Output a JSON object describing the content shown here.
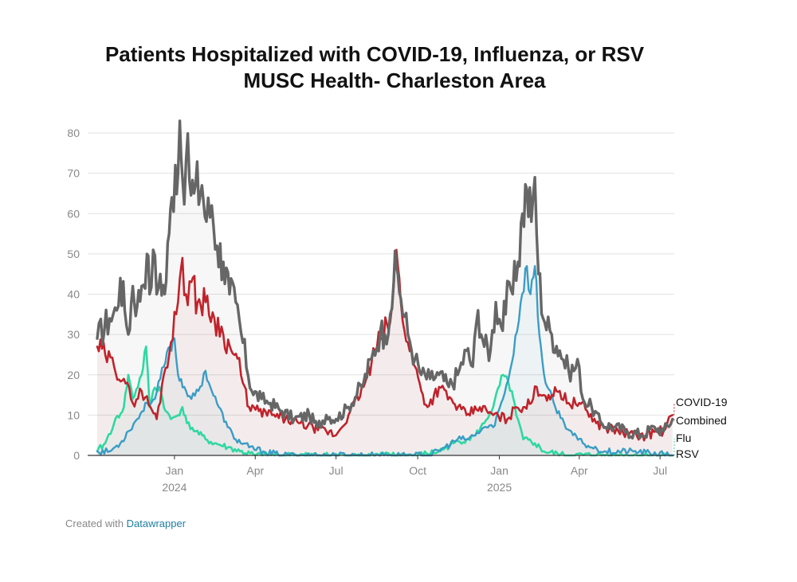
{
  "header": {
    "title": "Patients Hospitalized with COVID-19, Influenza, or RSV",
    "subtitle": "MUSC Health- Charleston Area"
  },
  "footer": {
    "prefix": "Created with",
    "link": "Datawrapper"
  },
  "colors": {
    "combined": "#666666",
    "covid": "#c0232b",
    "flu": "#2ed8a2",
    "rsv": "#3a9dc5",
    "grid": "#e2e2e2",
    "axis_text": "#888888"
  },
  "chart_data": {
    "type": "line",
    "title": "Patients Hospitalized with COVID-19, Influenza, or RSV",
    "subtitle": "MUSC Health- Charleston Area",
    "xlabel": "",
    "ylabel": "",
    "ylim": [
      0,
      82
    ],
    "yticks": [
      0,
      10,
      20,
      30,
      40,
      50,
      60,
      70,
      80
    ],
    "xlim": [
      "2023-10-06",
      "2025-07-17"
    ],
    "xticks": [
      {
        "date": "2024-01-01",
        "label": "Jan",
        "year": "2024"
      },
      {
        "date": "2024-04-01",
        "label": "Apr",
        "year": ""
      },
      {
        "date": "2024-07-01",
        "label": "Jul",
        "year": ""
      },
      {
        "date": "2024-10-01",
        "label": "Oct",
        "year": ""
      },
      {
        "date": "2025-01-01",
        "label": "Jan",
        "year": "2025"
      },
      {
        "date": "2025-04-01",
        "label": "Apr",
        "year": ""
      },
      {
        "date": "2025-07-01",
        "label": "Jul",
        "year": ""
      }
    ],
    "grid": true,
    "legend": "direct labels at right end",
    "series": [
      {
        "name": "Combined",
        "color": "#666666",
        "points": [
          [
            "2023-10-06",
            29
          ],
          [
            "2023-10-20",
            34
          ],
          [
            "2023-10-28",
            36
          ],
          [
            "2023-11-01",
            44
          ],
          [
            "2023-11-06",
            36
          ],
          [
            "2023-11-10",
            30
          ],
          [
            "2023-11-15",
            42
          ],
          [
            "2023-11-20",
            37
          ],
          [
            "2023-11-25",
            42
          ],
          [
            "2023-12-01",
            50
          ],
          [
            "2023-12-04",
            40
          ],
          [
            "2023-12-08",
            51
          ],
          [
            "2023-12-12",
            40
          ],
          [
            "2023-12-16",
            45
          ],
          [
            "2023-12-21",
            40
          ],
          [
            "2023-12-26",
            55
          ],
          [
            "2023-12-29",
            64
          ],
          [
            "2024-01-02",
            72
          ],
          [
            "2024-01-05",
            70
          ],
          [
            "2024-01-07",
            83
          ],
          [
            "2024-01-10",
            69
          ],
          [
            "2024-01-14",
            73
          ],
          [
            "2024-01-18",
            68
          ],
          [
            "2024-01-23",
            65
          ],
          [
            "2024-02-01",
            67
          ],
          [
            "2024-02-06",
            58
          ],
          [
            "2024-02-12",
            62
          ],
          [
            "2024-02-18",
            52
          ],
          [
            "2024-02-25",
            48
          ],
          [
            "2024-03-03",
            40
          ],
          [
            "2024-03-10",
            38
          ],
          [
            "2024-03-18",
            28
          ],
          [
            "2024-03-28",
            16
          ],
          [
            "2024-04-08",
            14
          ],
          [
            "2024-04-18",
            13
          ],
          [
            "2024-05-01",
            11
          ],
          [
            "2024-05-15",
            9
          ],
          [
            "2024-06-01",
            10
          ],
          [
            "2024-06-10",
            7
          ],
          [
            "2024-06-20",
            10
          ],
          [
            "2024-07-01",
            9
          ],
          [
            "2024-07-15",
            12
          ],
          [
            "2024-08-01",
            18
          ],
          [
            "2024-08-10",
            24
          ],
          [
            "2024-08-20",
            31
          ],
          [
            "2024-08-25",
            30
          ],
          [
            "2024-08-31",
            35
          ],
          [
            "2024-09-04",
            43
          ],
          [
            "2024-09-07",
            47
          ],
          [
            "2024-09-12",
            39
          ],
          [
            "2024-09-20",
            30
          ],
          [
            "2024-09-28",
            24
          ],
          [
            "2024-10-05",
            20
          ],
          [
            "2024-10-15",
            19
          ],
          [
            "2024-10-25",
            20
          ],
          [
            "2024-11-05",
            17
          ],
          [
            "2024-11-15",
            20
          ],
          [
            "2024-11-25",
            26
          ],
          [
            "2024-12-02",
            22
          ],
          [
            "2024-12-08",
            36
          ],
          [
            "2024-12-15",
            27
          ],
          [
            "2024-12-22",
            26
          ],
          [
            "2024-12-28",
            38
          ],
          [
            "2025-01-03",
            32
          ],
          [
            "2025-01-08",
            35
          ],
          [
            "2025-01-12",
            43
          ],
          [
            "2025-01-16",
            40
          ],
          [
            "2025-01-22",
            48
          ],
          [
            "2025-01-27",
            60
          ],
          [
            "2025-02-01",
            66
          ],
          [
            "2025-02-06",
            58
          ],
          [
            "2025-02-10",
            69
          ],
          [
            "2025-02-14",
            45
          ],
          [
            "2025-02-21",
            33
          ],
          [
            "2025-03-01",
            30
          ],
          [
            "2025-03-10",
            26
          ],
          [
            "2025-03-20",
            21
          ],
          [
            "2025-04-01",
            22
          ],
          [
            "2025-04-05",
            14
          ],
          [
            "2025-04-15",
            12
          ],
          [
            "2025-04-25",
            8
          ],
          [
            "2025-05-10",
            7
          ],
          [
            "2025-05-25",
            6
          ],
          [
            "2025-06-10",
            5
          ],
          [
            "2025-06-25",
            7
          ],
          [
            "2025-07-05",
            6
          ],
          [
            "2025-07-15",
            9
          ]
        ]
      },
      {
        "name": "COVID-19",
        "color": "#c0232b",
        "points": [
          [
            "2023-10-06",
            27
          ],
          [
            "2023-10-15",
            25
          ],
          [
            "2023-10-25",
            22
          ],
          [
            "2023-11-05",
            19
          ],
          [
            "2023-11-15",
            13
          ],
          [
            "2023-11-25",
            16
          ],
          [
            "2023-12-05",
            12
          ],
          [
            "2023-12-12",
            9
          ],
          [
            "2023-12-20",
            20
          ],
          [
            "2023-12-28",
            28
          ],
          [
            "2024-01-03",
            35
          ],
          [
            "2024-01-07",
            44
          ],
          [
            "2024-01-10",
            49
          ],
          [
            "2024-01-14",
            40
          ],
          [
            "2024-01-20",
            43
          ],
          [
            "2024-01-27",
            38
          ],
          [
            "2024-02-05",
            38
          ],
          [
            "2024-02-15",
            34
          ],
          [
            "2024-02-25",
            30
          ],
          [
            "2024-03-05",
            26
          ],
          [
            "2024-03-12",
            24
          ],
          [
            "2024-03-18",
            18
          ],
          [
            "2024-03-25",
            12
          ],
          [
            "2024-04-05",
            11
          ],
          [
            "2024-04-20",
            10
          ],
          [
            "2024-05-05",
            9
          ],
          [
            "2024-05-20",
            8
          ],
          [
            "2024-06-05",
            7
          ],
          [
            "2024-06-20",
            6
          ],
          [
            "2024-07-01",
            5
          ],
          [
            "2024-07-15",
            10
          ],
          [
            "2024-08-01",
            17
          ],
          [
            "2024-08-10",
            23
          ],
          [
            "2024-08-20",
            29
          ],
          [
            "2024-08-31",
            33
          ],
          [
            "2024-09-04",
            42
          ],
          [
            "2024-09-07",
            51
          ],
          [
            "2024-09-12",
            38
          ],
          [
            "2024-09-20",
            28
          ],
          [
            "2024-09-28",
            22
          ],
          [
            "2024-10-05",
            16
          ],
          [
            "2024-10-12",
            12
          ],
          [
            "2024-10-25",
            17
          ],
          [
            "2024-11-10",
            13
          ],
          [
            "2024-11-25",
            10
          ],
          [
            "2024-12-10",
            12
          ],
          [
            "2024-12-25",
            10
          ],
          [
            "2025-01-10",
            9
          ],
          [
            "2025-01-20",
            12
          ],
          [
            "2025-01-28",
            12
          ],
          [
            "2025-02-06",
            13
          ],
          [
            "2025-02-12",
            17
          ],
          [
            "2025-02-20",
            15
          ],
          [
            "2025-03-01",
            15
          ],
          [
            "2025-03-10",
            16
          ],
          [
            "2025-03-20",
            13
          ],
          [
            "2025-04-01",
            13
          ],
          [
            "2025-04-10",
            11
          ],
          [
            "2025-04-20",
            8
          ],
          [
            "2025-05-01",
            7
          ],
          [
            "2025-05-15",
            6
          ],
          [
            "2025-06-01",
            5
          ],
          [
            "2025-06-15",
            5
          ],
          [
            "2025-06-28",
            6
          ],
          [
            "2025-07-05",
            6
          ],
          [
            "2025-07-15",
            10
          ]
        ]
      },
      {
        "name": "Flu",
        "color": "#2ed8a2",
        "points": [
          [
            "2023-10-06",
            1
          ],
          [
            "2023-10-15",
            3
          ],
          [
            "2023-10-25",
            8
          ],
          [
            "2023-11-05",
            12
          ],
          [
            "2023-11-10",
            20
          ],
          [
            "2023-11-15",
            14
          ],
          [
            "2023-11-25",
            20
          ],
          [
            "2023-11-30",
            27
          ],
          [
            "2023-12-04",
            12
          ],
          [
            "2023-12-08",
            16
          ],
          [
            "2023-12-15",
            17
          ],
          [
            "2023-12-22",
            11
          ],
          [
            "2023-12-28",
            9
          ],
          [
            "2024-01-05",
            10
          ],
          [
            "2024-01-10",
            12
          ],
          [
            "2024-01-15",
            8
          ],
          [
            "2024-01-25",
            6
          ],
          [
            "2024-02-05",
            4
          ],
          [
            "2024-02-15",
            3
          ],
          [
            "2024-03-01",
            2
          ],
          [
            "2024-03-15",
            1
          ],
          [
            "2024-04-01",
            0
          ],
          [
            "2024-06-01",
            0
          ],
          [
            "2024-08-01",
            0
          ],
          [
            "2024-10-01",
            0
          ],
          [
            "2024-10-25",
            1
          ],
          [
            "2024-11-10",
            3
          ],
          [
            "2024-11-25",
            4
          ],
          [
            "2024-12-05",
            5
          ],
          [
            "2024-12-15",
            8
          ],
          [
            "2024-12-25",
            12
          ],
          [
            "2025-01-05",
            20
          ],
          [
            "2025-01-15",
            16
          ],
          [
            "2025-01-20",
            10
          ],
          [
            "2025-01-28",
            4
          ],
          [
            "2025-02-10",
            3
          ],
          [
            "2025-02-20",
            1
          ],
          [
            "2025-03-15",
            0
          ],
          [
            "2025-07-15",
            0
          ]
        ]
      },
      {
        "name": "RSV",
        "color": "#3a9dc5",
        "points": [
          [
            "2023-10-06",
            1
          ],
          [
            "2023-10-20",
            1
          ],
          [
            "2023-11-01",
            3
          ],
          [
            "2023-11-10",
            6
          ],
          [
            "2023-11-20",
            9
          ],
          [
            "2023-12-01",
            13
          ],
          [
            "2023-12-10",
            14
          ],
          [
            "2023-12-20",
            22
          ],
          [
            "2023-12-27",
            27
          ],
          [
            "2024-01-01",
            29
          ],
          [
            "2024-01-05",
            20
          ],
          [
            "2024-01-12",
            17
          ],
          [
            "2024-01-20",
            14
          ],
          [
            "2024-01-28",
            16
          ],
          [
            "2024-02-05",
            21
          ],
          [
            "2024-02-12",
            16
          ],
          [
            "2024-02-20",
            12
          ],
          [
            "2024-03-01",
            7
          ],
          [
            "2024-03-10",
            4
          ],
          [
            "2024-03-25",
            2
          ],
          [
            "2024-04-10",
            1
          ],
          [
            "2024-05-01",
            0
          ],
          [
            "2024-10-15",
            0
          ],
          [
            "2024-11-01",
            2
          ],
          [
            "2024-11-15",
            4
          ],
          [
            "2024-11-25",
            4
          ],
          [
            "2024-12-05",
            5
          ],
          [
            "2024-12-15",
            7
          ],
          [
            "2024-12-25",
            7
          ],
          [
            "2025-01-05",
            14
          ],
          [
            "2025-01-15",
            23
          ],
          [
            "2025-01-25",
            38
          ],
          [
            "2025-02-01",
            47
          ],
          [
            "2025-02-05",
            40
          ],
          [
            "2025-02-10",
            47
          ],
          [
            "2025-02-15",
            30
          ],
          [
            "2025-02-22",
            18
          ],
          [
            "2025-03-05",
            12
          ],
          [
            "2025-03-15",
            8
          ],
          [
            "2025-03-25",
            5
          ],
          [
            "2025-04-05",
            3
          ],
          [
            "2025-04-15",
            2
          ],
          [
            "2025-05-01",
            1
          ],
          [
            "2025-06-01",
            1
          ],
          [
            "2025-07-15",
            0
          ]
        ]
      }
    ],
    "end_labels": [
      {
        "series": "COVID-19",
        "text": "COVID-19"
      },
      {
        "series": "Combined",
        "text": "Combined"
      },
      {
        "series": "Flu",
        "text": "Flu"
      },
      {
        "series": "RSV",
        "text": "RSV"
      }
    ]
  }
}
